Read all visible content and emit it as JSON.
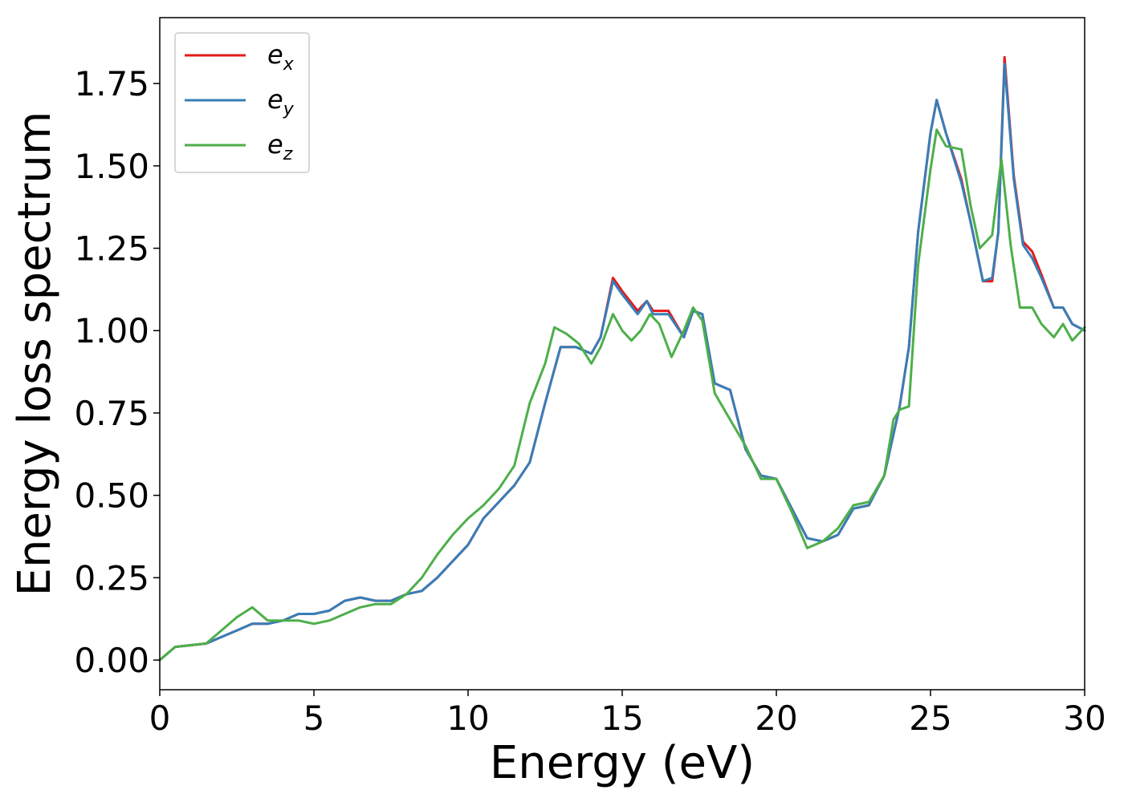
{
  "chart_data": {
    "type": "line",
    "xlabel": "Energy (eV)",
    "ylabel": "Energy loss spectrum",
    "xlim": [
      0,
      30
    ],
    "ylim": [
      -0.09,
      1.95
    ],
    "xticks": [
      0,
      5,
      10,
      15,
      20,
      25,
      30
    ],
    "xtick_labels": [
      "0",
      "5",
      "10",
      "15",
      "20",
      "25",
      "30"
    ],
    "yticks": [
      0.0,
      0.25,
      0.5,
      0.75,
      1.0,
      1.25,
      1.5,
      1.75
    ],
    "ytick_labels": [
      "0.00",
      "0.25",
      "0.50",
      "0.75",
      "1.00",
      "1.25",
      "1.50",
      "1.75"
    ],
    "grid": false,
    "legend_position": "top-left",
    "series": [
      {
        "name": "e",
        "subscript": "x",
        "color": "#e41a1c",
        "x": [
          0,
          0.5,
          1,
          1.5,
          2,
          2.5,
          3,
          3.5,
          4,
          4.5,
          5,
          5.5,
          6,
          6.5,
          7,
          7.5,
          8,
          8.5,
          9,
          9.5,
          10,
          10.5,
          11,
          11.5,
          12,
          12.5,
          13,
          13.5,
          14,
          14.3,
          14.7,
          15,
          15.5,
          15.8,
          16,
          16.5,
          17,
          17.3,
          17.6,
          18,
          18.5,
          19,
          19.5,
          20,
          20.5,
          21,
          21.5,
          22,
          22.5,
          23,
          23.5,
          24,
          24.3,
          24.6,
          25,
          25.2,
          25.5,
          26,
          26.3,
          26.7,
          27,
          27.2,
          27.4,
          27.7,
          28,
          28.3,
          28.6,
          29,
          29.3,
          29.6,
          30
        ],
        "values": [
          0.0,
          0.04,
          0.045,
          0.05,
          0.07,
          0.09,
          0.11,
          0.11,
          0.12,
          0.14,
          0.14,
          0.15,
          0.18,
          0.19,
          0.18,
          0.18,
          0.2,
          0.21,
          0.25,
          0.3,
          0.35,
          0.43,
          0.48,
          0.53,
          0.6,
          0.78,
          0.95,
          0.95,
          0.93,
          0.98,
          1.16,
          1.12,
          1.06,
          1.09,
          1.06,
          1.06,
          0.98,
          1.06,
          1.05,
          0.84,
          0.82,
          0.64,
          0.56,
          0.55,
          0.46,
          0.37,
          0.36,
          0.38,
          0.46,
          0.47,
          0.56,
          0.77,
          0.95,
          1.3,
          1.6,
          1.7,
          1.6,
          1.46,
          1.33,
          1.15,
          1.15,
          1.3,
          1.83,
          1.47,
          1.27,
          1.24,
          1.17,
          1.07,
          1.07,
          1.02,
          1.0
        ]
      },
      {
        "name": "e",
        "subscript": "y",
        "color": "#377eb8",
        "x": [
          0,
          0.5,
          1,
          1.5,
          2,
          2.5,
          3,
          3.5,
          4,
          4.5,
          5,
          5.5,
          6,
          6.5,
          7,
          7.5,
          8,
          8.5,
          9,
          9.5,
          10,
          10.5,
          11,
          11.5,
          12,
          12.5,
          13,
          13.5,
          14,
          14.3,
          14.7,
          15,
          15.5,
          15.8,
          16,
          16.5,
          17,
          17.3,
          17.6,
          18,
          18.5,
          19,
          19.5,
          20,
          20.5,
          21,
          21.5,
          22,
          22.5,
          23,
          23.5,
          24,
          24.3,
          24.6,
          25,
          25.2,
          25.5,
          26,
          26.3,
          26.7,
          27,
          27.2,
          27.4,
          27.7,
          28,
          28.3,
          28.6,
          29,
          29.3,
          29.6,
          30
        ],
        "values": [
          0.0,
          0.04,
          0.045,
          0.05,
          0.07,
          0.09,
          0.11,
          0.11,
          0.12,
          0.14,
          0.14,
          0.15,
          0.18,
          0.19,
          0.18,
          0.18,
          0.2,
          0.21,
          0.25,
          0.3,
          0.35,
          0.43,
          0.48,
          0.53,
          0.6,
          0.78,
          0.95,
          0.95,
          0.93,
          0.98,
          1.15,
          1.11,
          1.05,
          1.09,
          1.05,
          1.05,
          0.98,
          1.06,
          1.05,
          0.84,
          0.82,
          0.64,
          0.56,
          0.55,
          0.46,
          0.37,
          0.36,
          0.38,
          0.46,
          0.47,
          0.56,
          0.77,
          0.95,
          1.3,
          1.6,
          1.7,
          1.6,
          1.45,
          1.33,
          1.15,
          1.16,
          1.3,
          1.81,
          1.46,
          1.26,
          1.22,
          1.16,
          1.07,
          1.07,
          1.02,
          1.0
        ]
      },
      {
        "name": "e",
        "subscript": "z",
        "color": "#4daf4a",
        "x": [
          0,
          0.5,
          1,
          1.5,
          2,
          2.5,
          3,
          3.5,
          4,
          4.5,
          5,
          5.5,
          6,
          6.5,
          7,
          7.5,
          8,
          8.5,
          9,
          9.5,
          10,
          10.5,
          11,
          11.5,
          12,
          12.5,
          12.8,
          13.2,
          13.6,
          14,
          14.3,
          14.7,
          15,
          15.3,
          15.6,
          15.9,
          16.2,
          16.6,
          17,
          17.3,
          17.6,
          18,
          18.5,
          19,
          19.5,
          20,
          20.5,
          21,
          21.5,
          22,
          22.5,
          23,
          23.5,
          23.8,
          24,
          24.3,
          24.6,
          25,
          25.2,
          25.5,
          26,
          26.3,
          26.6,
          27,
          27.3,
          27.6,
          27.9,
          28.3,
          28.6,
          29,
          29.3,
          29.6,
          30
        ],
        "values": [
          0.0,
          0.04,
          0.045,
          0.05,
          0.09,
          0.13,
          0.16,
          0.12,
          0.12,
          0.12,
          0.11,
          0.12,
          0.14,
          0.16,
          0.17,
          0.17,
          0.2,
          0.25,
          0.32,
          0.38,
          0.43,
          0.47,
          0.52,
          0.59,
          0.78,
          0.9,
          1.01,
          0.99,
          0.96,
          0.9,
          0.95,
          1.05,
          1.0,
          0.97,
          1.0,
          1.05,
          1.02,
          0.92,
          1.0,
          1.07,
          1.03,
          0.81,
          0.73,
          0.65,
          0.55,
          0.55,
          0.45,
          0.34,
          0.36,
          0.4,
          0.47,
          0.48,
          0.56,
          0.73,
          0.76,
          0.77,
          1.2,
          1.49,
          1.61,
          1.56,
          1.55,
          1.38,
          1.25,
          1.29,
          1.52,
          1.26,
          1.07,
          1.07,
          1.02,
          0.98,
          1.02,
          0.97,
          1.01
        ]
      }
    ]
  }
}
